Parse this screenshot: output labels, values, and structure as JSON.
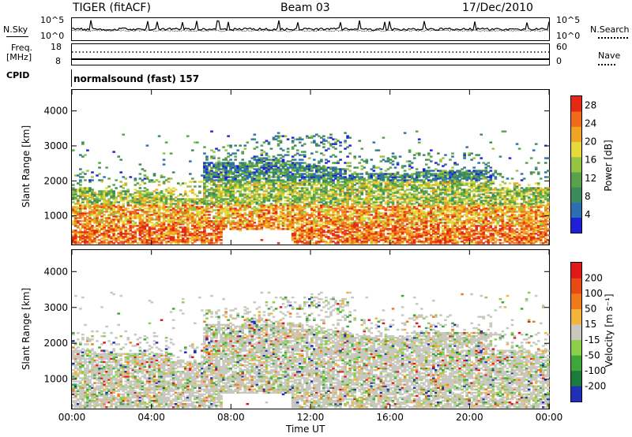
{
  "header": {
    "radar_title": "TIGER (fitACF)",
    "beam": "Beam 03",
    "date": "17/Dec/2010"
  },
  "noise_panel": {
    "left_label": "N.Sky",
    "right_label": "N.Search",
    "left_ticks": [
      "10^5",
      "10^0"
    ],
    "right_ticks": [
      "10^5",
      "10^0"
    ]
  },
  "freq_panel": {
    "left_label_1": "Freq.",
    "left_label_2": "[MHz]",
    "right_label": "Nave",
    "left_ticks": [
      "18",
      "8"
    ],
    "right_ticks": [
      "60",
      "0"
    ]
  },
  "cpid_panel": {
    "label": "CPID",
    "mode": "normalsound (fast) 157"
  },
  "chart_data": [
    {
      "type": "heatmap",
      "name": "power",
      "ylabel": "Slant Range [km]",
      "yticks": [
        "4000",
        "3000",
        "2000",
        "1000"
      ],
      "ytick_values": [
        4000,
        3000,
        2000,
        1000
      ],
      "ylim": [
        180,
        4600
      ],
      "xlim_hours": [
        0,
        24
      ],
      "colorbar_label": "Power [dB]",
      "colorbar_ticks": [
        "28",
        "24",
        "20",
        "16",
        "12",
        "8",
        "4"
      ],
      "colorbar_range": [
        0,
        30
      ],
      "colors": [
        "#1f1fd8",
        "#2c6fb0",
        "#3a8a5c",
        "#58a24a",
        "#96c440",
        "#e8d93a",
        "#f0a423",
        "#f06a1a",
        "#e42a14"
      ]
    },
    {
      "type": "heatmap",
      "name": "velocity",
      "ylabel": "Slant Range [km]",
      "yticks": [
        "4000",
        "3000",
        "2000",
        "1000"
      ],
      "ytick_values": [
        4000,
        3000,
        2000,
        1000
      ],
      "ylim": [
        180,
        4600
      ],
      "xlim_hours": [
        0,
        24
      ],
      "colorbar_label": "Velocity [m s⁻¹]",
      "colorbar_ticks": [
        "200",
        "100",
        "50",
        "15",
        "-15",
        "-50",
        "-100",
        "-200"
      ],
      "colorbar_range": [
        -250,
        250
      ],
      "colors": [
        "#1f2fb8",
        "#1c7a3c",
        "#3ea63a",
        "#8cd04a",
        "#c8c8c0",
        "#f2b43a",
        "#f07a1a",
        "#e84a14",
        "#e01818"
      ]
    }
  ],
  "x_axis": {
    "ticks": [
      "00:00",
      "04:00",
      "08:00",
      "12:00",
      "16:00",
      "20:00",
      "00:00"
    ],
    "label": "Time UT"
  }
}
